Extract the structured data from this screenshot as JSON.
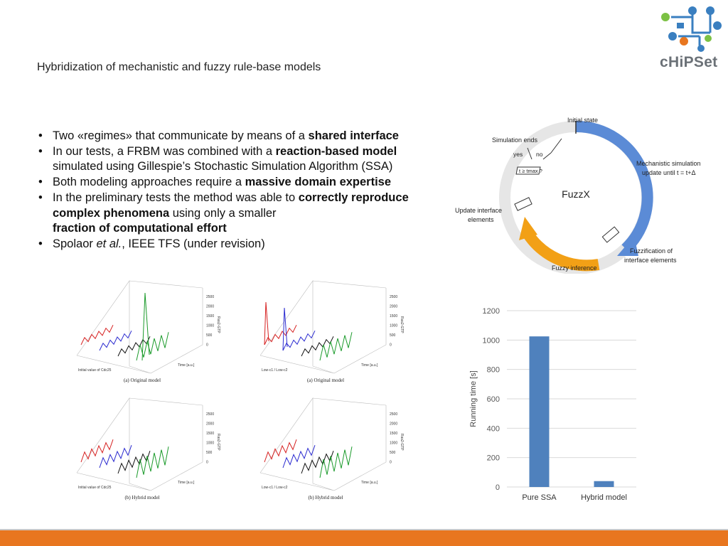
{
  "slide": {
    "title": "Hybridization of mechanistic and fuzzy rule-base models",
    "bullets": [
      {
        "pre": "Two «regimes» that communicate by means of a ",
        "bold": "shared interface",
        "post": ""
      },
      {
        "pre": "In our tests, a FRBM was combined with a ",
        "bold": "reaction-based model",
        "post": " simulated using Gillespie’s Stochastic Simulation Algorithm (SSA)"
      },
      {
        "pre": "Both modeling approaches require a ",
        "bold": "massive domain expertise",
        "post": ""
      },
      {
        "pre": "In the preliminary tests the method was able to ",
        "bold": "correctly reproduce complex phenomena",
        "post": " using only a smaller ",
        "bold2": "fraction of computational effort"
      },
      {
        "pre": "Spolaor ",
        "italic": "et al.",
        "post": ", IEEE TFS (under revision)"
      }
    ]
  },
  "logo": {
    "text": "cHiPSet"
  },
  "cycle": {
    "center": "FuzzX",
    "initial": "Initial state",
    "sim_ends": "Simulation ends",
    "yes": "yes",
    "no": "no",
    "cond": "t ≥ tmax ?",
    "mech1": "Mechanistic simulation",
    "mech2": "update until t = t+Δ",
    "fuzzif1": "Fuzzification of",
    "fuzzif2": "interface elements",
    "fuzzy_inf": "Fuzzy inference",
    "update1": "Update interface",
    "update2": "elements",
    "colors": {
      "blue": "#5b8bd6",
      "orange": "#f2a016",
      "ring": "#e6e6e6"
    }
  },
  "plots": {
    "captions": [
      "(a) Original model",
      "(a) Original model",
      "(b) Hybrid model",
      "(b) Hybrid model"
    ],
    "z_ticks": [
      "2500",
      "2000",
      "1500",
      "1000",
      "500",
      "0"
    ],
    "z_label": "Ras2-GTP",
    "time_label": "Time [a.u.]",
    "x_label_left": "Initial value of Cdc25",
    "x_label_right": "Low-c1 / Low-c2",
    "colors": [
      "#d62020",
      "#2a2ad0",
      "#111111",
      "#1a9a2a"
    ]
  },
  "chart_data": {
    "type": "bar",
    "categories": [
      "Pure SSA",
      "Hybrid model"
    ],
    "values": [
      1025,
      40
    ],
    "title": "",
    "xlabel": "",
    "ylabel": "Running time [s]",
    "ylim": [
      0,
      1200
    ],
    "yticks": [
      0,
      200,
      400,
      600,
      800,
      1000,
      1200
    ],
    "grid": true,
    "color": "#4f81bd"
  },
  "footer": {
    "color": "#e8761f"
  }
}
